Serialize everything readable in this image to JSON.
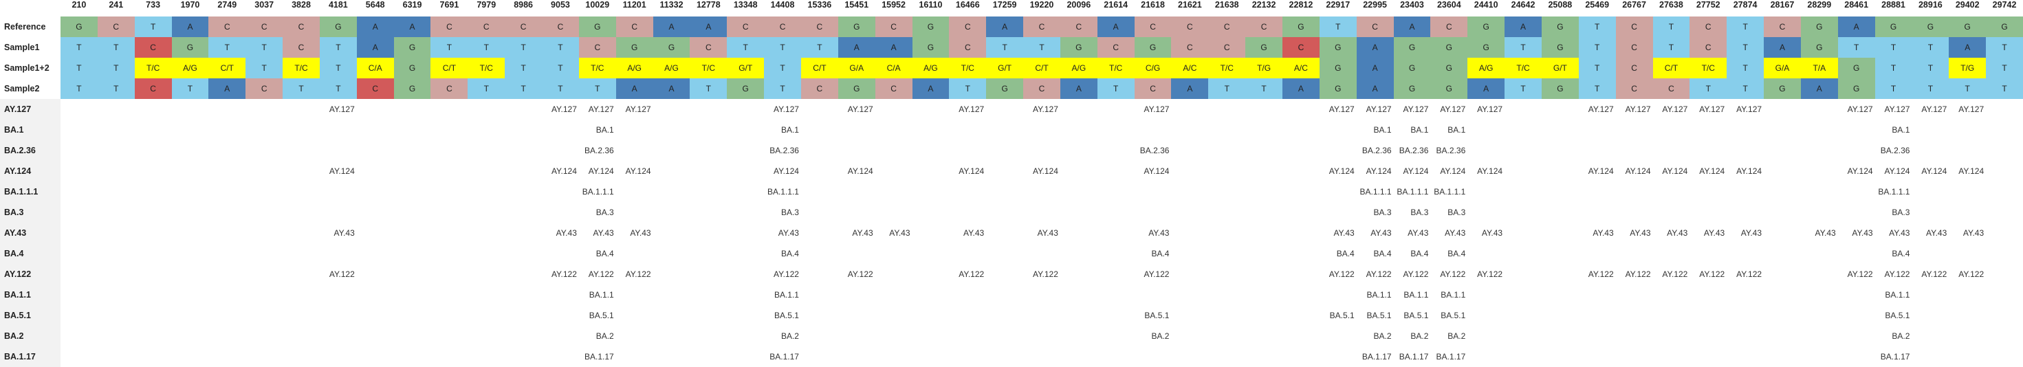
{
  "colors": {
    "A": "#4a80b8",
    "C": "#cfa4a0",
    "G": "#8fbf8f",
    "T": "#87ceeb",
    "mixed": "#ffff00",
    "highlight_C": "#d25a5a",
    "row_label_bg": "#f2f2f2"
  },
  "positions": [
    "210",
    "241",
    "733",
    "1970",
    "2749",
    "3037",
    "3828",
    "4181",
    "5648",
    "6319",
    "7691",
    "7979",
    "8986",
    "9053",
    "10029",
    "11201",
    "11332",
    "12778",
    "13348",
    "14408",
    "15336",
    "15451",
    "15952",
    "16110",
    "16466",
    "17259",
    "19220",
    "20096",
    "21614",
    "21618",
    "21621",
    "21638",
    "22132",
    "22812",
    "22917",
    "22995",
    "23403",
    "23604",
    "24410",
    "24642",
    "25088",
    "25469",
    "26767",
    "27638",
    "27752",
    "27874",
    "28167",
    "28299",
    "28461",
    "28881",
    "28916",
    "29402",
    "29742"
  ],
  "sequences": [
    {
      "label": "Reference",
      "cells": [
        "G",
        "C",
        "T",
        "A",
        "C",
        "C",
        "C",
        "G",
        "A",
        "A",
        "C",
        "C",
        "C",
        "C",
        "G",
        "C",
        "A",
        "A",
        "C",
        "C",
        "C",
        "G",
        "C",
        "G",
        "C",
        "A",
        "C",
        "C",
        "A",
        "C",
        "C",
        "C",
        "C",
        "G",
        "T",
        "C",
        "A",
        "C",
        "G",
        "A",
        "G",
        "T",
        "C",
        "T",
        "C",
        "T",
        "C",
        "G",
        "A",
        "G",
        "G",
        "G",
        "G"
      ]
    },
    {
      "label": "Sample1",
      "cells": [
        "T",
        "T",
        "C",
        "G",
        "T",
        "T",
        "C",
        "T",
        "A",
        "G",
        "T",
        "T",
        "T",
        "T",
        "C",
        "G",
        "G",
        "C",
        "T",
        "T",
        "T",
        "A",
        "A",
        "G",
        "C",
        "T",
        "T",
        "G",
        "C",
        "G",
        "C",
        "C",
        "G",
        "C",
        "G",
        "A",
        "G",
        "G",
        "G",
        "T",
        "G",
        "T",
        "C",
        "T",
        "C",
        "T",
        "A",
        "G",
        "T",
        "T",
        "T",
        "A",
        "T"
      ]
    },
    {
      "label": "Sample1+2",
      "cells": [
        "T",
        "T",
        "T/C",
        "A/G",
        "C/T",
        "T",
        "T/C",
        "T",
        "C/A",
        "G",
        "C/T",
        "T/C",
        "T",
        "T",
        "T/C",
        "A/G",
        "A/G",
        "T/C",
        "G/T",
        "T",
        "C/T",
        "G/A",
        "C/A",
        "A/G",
        "T/C",
        "G/T",
        "C/T",
        "A/G",
        "T/C",
        "C/G",
        "A/C",
        "T/C",
        "T/G",
        "A/C",
        "G",
        "A",
        "G",
        "G",
        "A/G",
        "T/C",
        "G/T",
        "T",
        "C",
        "C/T",
        "T/C",
        "T",
        "G/A",
        "T/A",
        "G",
        "T",
        "T",
        "T/G",
        "T"
      ]
    },
    {
      "label": "Sample2",
      "cells": [
        "T",
        "T",
        "C",
        "T",
        "A",
        "C",
        "T",
        "T",
        "C",
        "G",
        "C",
        "T",
        "T",
        "T",
        "T",
        "A",
        "A",
        "T",
        "G",
        "T",
        "C",
        "G",
        "C",
        "A",
        "T",
        "G",
        "C",
        "A",
        "T",
        "C",
        "A",
        "T",
        "T",
        "A",
        "G",
        "A",
        "G",
        "G",
        "A",
        "T",
        "G",
        "T",
        "C",
        "C",
        "T",
        "T",
        "G",
        "A",
        "G",
        "T",
        "T",
        "T",
        "T"
      ]
    }
  ],
  "lineages": [
    {
      "label": "AY.127",
      "values": [
        "",
        "",
        "",
        "",
        "",
        "",
        "",
        "AY.127",
        "",
        "",
        "",
        "",
        "",
        "AY.127",
        "AY.127",
        "AY.127",
        "",
        "",
        "",
        "AY.127",
        "",
        "AY.127",
        "",
        "",
        "AY.127",
        "",
        "AY.127",
        "",
        "",
        "AY.127",
        "",
        "",
        "",
        "",
        "AY.127",
        "AY.127",
        "AY.127",
        "AY.127",
        "AY.127",
        "",
        "",
        "AY.127",
        "AY.127",
        "AY.127",
        "AY.127",
        "AY.127",
        "",
        "",
        "AY.127",
        "AY.127",
        "AY.127",
        "AY.127",
        ""
      ]
    },
    {
      "label": "BA.1",
      "values": [
        "",
        "",
        "",
        "",
        "",
        "",
        "",
        "",
        "",
        "",
        "",
        "",
        "",
        "",
        "BA.1",
        "",
        "",
        "",
        "",
        "BA.1",
        "",
        "",
        "",
        "",
        "",
        "",
        "",
        "",
        "",
        "",
        "",
        "",
        "",
        "",
        "",
        "BA.1",
        "BA.1",
        "BA.1",
        "",
        "",
        "",
        "",
        "",
        "",
        "",
        "",
        "",
        "",
        "",
        "BA.1",
        "",
        "",
        ""
      ]
    },
    {
      "label": "BA.2.36",
      "values": [
        "",
        "",
        "",
        "",
        "",
        "",
        "",
        "",
        "",
        "",
        "",
        "",
        "",
        "",
        "BA.2.36",
        "",
        "",
        "",
        "",
        "BA.2.36",
        "",
        "",
        "",
        "",
        "",
        "",
        "",
        "",
        "",
        "BA.2.36",
        "",
        "",
        "",
        "",
        "",
        "BA.2.36",
        "BA.2.36",
        "BA.2.36",
        "",
        "",
        "",
        "",
        "",
        "",
        "",
        "",
        "",
        "",
        "",
        "BA.2.36",
        "",
        "",
        ""
      ]
    },
    {
      "label": "AY.124",
      "values": [
        "",
        "",
        "",
        "",
        "",
        "",
        "",
        "AY.124",
        "",
        "",
        "",
        "",
        "",
        "AY.124",
        "AY.124",
        "AY.124",
        "",
        "",
        "",
        "AY.124",
        "",
        "AY.124",
        "",
        "",
        "AY.124",
        "",
        "AY.124",
        "",
        "",
        "AY.124",
        "",
        "",
        "",
        "",
        "AY.124",
        "AY.124",
        "AY.124",
        "AY.124",
        "AY.124",
        "",
        "",
        "AY.124",
        "AY.124",
        "AY.124",
        "AY.124",
        "AY.124",
        "",
        "",
        "AY.124",
        "AY.124",
        "AY.124",
        "AY.124",
        ""
      ]
    },
    {
      "label": "BA.1.1.1",
      "values": [
        "",
        "",
        "",
        "",
        "",
        "",
        "",
        "",
        "",
        "",
        "",
        "",
        "",
        "",
        "BA.1.1.1",
        "",
        "",
        "",
        "",
        "BA.1.1.1",
        "",
        "",
        "",
        "",
        "",
        "",
        "",
        "",
        "",
        "",
        "",
        "",
        "",
        "",
        "",
        "BA.1.1.1",
        "BA.1.1.1",
        "BA.1.1.1",
        "",
        "",
        "",
        "",
        "",
        "",
        "",
        "",
        "",
        "",
        "",
        "BA.1.1.1",
        "",
        "",
        ""
      ]
    },
    {
      "label": "BA.3",
      "values": [
        "",
        "",
        "",
        "",
        "",
        "",
        "",
        "",
        "",
        "",
        "",
        "",
        "",
        "",
        "BA.3",
        "",
        "",
        "",
        "",
        "BA.3",
        "",
        "",
        "",
        "",
        "",
        "",
        "",
        "",
        "",
        "",
        "",
        "",
        "",
        "",
        "",
        "BA.3",
        "BA.3",
        "BA.3",
        "",
        "",
        "",
        "",
        "",
        "",
        "",
        "",
        "",
        "",
        "",
        "BA.3",
        "",
        "",
        ""
      ]
    },
    {
      "label": "AY.43",
      "values": [
        "",
        "",
        "",
        "",
        "",
        "",
        "",
        "AY.43",
        "",
        "",
        "",
        "",
        "",
        "AY.43",
        "AY.43",
        "AY.43",
        "",
        "",
        "",
        "AY.43",
        "",
        "AY.43",
        "AY.43",
        "",
        "AY.43",
        "",
        "AY.43",
        "",
        "",
        "AY.43",
        "",
        "",
        "",
        "",
        "AY.43",
        "AY.43",
        "AY.43",
        "AY.43",
        "AY.43",
        "",
        "",
        "AY.43",
        "AY.43",
        "AY.43",
        "AY.43",
        "AY.43",
        "",
        "AY.43",
        "AY.43",
        "AY.43",
        "AY.43",
        "AY.43",
        ""
      ]
    },
    {
      "label": "BA.4",
      "values": [
        "",
        "",
        "",
        "",
        "",
        "",
        "",
        "",
        "",
        "",
        "",
        "",
        "",
        "",
        "BA.4",
        "",
        "",
        "",
        "",
        "BA.4",
        "",
        "",
        "",
        "",
        "",
        "",
        "",
        "",
        "",
        "BA.4",
        "",
        "",
        "",
        "",
        "BA.4",
        "BA.4",
        "BA.4",
        "BA.4",
        "",
        "",
        "",
        "",
        "",
        "",
        "",
        "",
        "",
        "",
        "",
        "BA.4",
        "",
        "",
        ""
      ]
    },
    {
      "label": "AY.122",
      "values": [
        "",
        "",
        "",
        "",
        "",
        "",
        "",
        "AY.122",
        "",
        "",
        "",
        "",
        "",
        "AY.122",
        "AY.122",
        "AY.122",
        "",
        "",
        "",
        "AY.122",
        "",
        "AY.122",
        "",
        "",
        "AY.122",
        "",
        "AY.122",
        "",
        "",
        "AY.122",
        "",
        "",
        "",
        "",
        "AY.122",
        "AY.122",
        "AY.122",
        "AY.122",
        "AY.122",
        "",
        "",
        "AY.122",
        "AY.122",
        "AY.122",
        "AY.122",
        "AY.122",
        "",
        "",
        "AY.122",
        "AY.122",
        "AY.122",
        "AY.122",
        ""
      ]
    },
    {
      "label": "BA.1.1",
      "values": [
        "",
        "",
        "",
        "",
        "",
        "",
        "",
        "",
        "",
        "",
        "",
        "",
        "",
        "",
        "BA.1.1",
        "",
        "",
        "",
        "",
        "BA.1.1",
        "",
        "",
        "",
        "",
        "",
        "",
        "",
        "",
        "",
        "",
        "",
        "",
        "",
        "",
        "",
        "BA.1.1",
        "BA.1.1",
        "BA.1.1",
        "",
        "",
        "",
        "",
        "",
        "",
        "",
        "",
        "",
        "",
        "",
        "BA.1.1",
        "",
        "",
        ""
      ]
    },
    {
      "label": "BA.5.1",
      "values": [
        "",
        "",
        "",
        "",
        "",
        "",
        "",
        "",
        "",
        "",
        "",
        "",
        "",
        "",
        "BA.5.1",
        "",
        "",
        "",
        "",
        "BA.5.1",
        "",
        "",
        "",
        "",
        "",
        "",
        "",
        "",
        "",
        "BA.5.1",
        "",
        "",
        "",
        "",
        "BA.5.1",
        "BA.5.1",
        "BA.5.1",
        "BA.5.1",
        "",
        "",
        "",
        "",
        "",
        "",
        "",
        "",
        "",
        "",
        "",
        "BA.5.1",
        "",
        "",
        ""
      ]
    },
    {
      "label": "BA.2",
      "values": [
        "",
        "",
        "",
        "",
        "",
        "",
        "",
        "",
        "",
        "",
        "",
        "",
        "",
        "",
        "BA.2",
        "",
        "",
        "",
        "",
        "BA.2",
        "",
        "",
        "",
        "",
        "",
        "",
        "",
        "",
        "",
        "BA.2",
        "",
        "",
        "",
        "",
        "",
        "BA.2",
        "BA.2",
        "BA.2",
        "",
        "",
        "",
        "",
        "",
        "",
        "",
        "",
        "",
        "",
        "",
        "BA.2",
        "",
        "",
        ""
      ]
    },
    {
      "label": "BA.1.17",
      "values": [
        "",
        "",
        "",
        "",
        "",
        "",
        "",
        "",
        "",
        "",
        "",
        "",
        "",
        "",
        "BA.1.17",
        "",
        "",
        "",
        "",
        "BA.1.17",
        "",
        "",
        "",
        "",
        "",
        "",
        "",
        "",
        "",
        "",
        "",
        "",
        "",
        "",
        "",
        "BA.1.17",
        "BA.1.17",
        "BA.1.17",
        "",
        "",
        "",
        "",
        "",
        "",
        "",
        "",
        "",
        "",
        "",
        "BA.1.17",
        "",
        "",
        ""
      ]
    }
  ]
}
